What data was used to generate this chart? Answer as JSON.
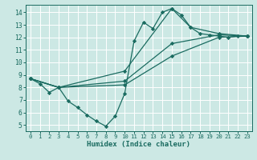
{
  "background_color": "#cce8e4",
  "grid_color": "#ffffff",
  "line_color": "#1a6b60",
  "marker_color": "#1a6b60",
  "xlabel": "Humidex (Indice chaleur)",
  "xlim": [
    -0.5,
    23.5
  ],
  "ylim": [
    4.5,
    14.6
  ],
  "xticks": [
    0,
    1,
    2,
    3,
    4,
    5,
    6,
    7,
    8,
    9,
    10,
    11,
    12,
    13,
    14,
    15,
    16,
    17,
    18,
    19,
    20,
    21,
    22,
    23
  ],
  "yticks": [
    5,
    6,
    7,
    8,
    9,
    10,
    11,
    12,
    13,
    14
  ],
  "lines": [
    {
      "x": [
        0,
        1,
        2,
        3,
        4,
        5,
        6,
        7,
        8,
        9,
        10,
        11,
        12,
        13,
        14,
        15,
        16,
        17,
        18,
        19,
        20,
        21,
        22,
        23
      ],
      "y": [
        8.7,
        8.3,
        7.6,
        8.0,
        6.9,
        6.4,
        5.8,
        5.3,
        4.9,
        5.7,
        7.5,
        11.7,
        13.2,
        12.7,
        14.0,
        14.3,
        13.8,
        12.8,
        12.3,
        12.2,
        12.1,
        12.0,
        12.1,
        12.1
      ]
    },
    {
      "x": [
        0,
        3,
        10,
        15,
        20,
        23
      ],
      "y": [
        8.7,
        8.0,
        8.2,
        10.5,
        12.0,
        12.1
      ]
    },
    {
      "x": [
        0,
        3,
        10,
        15,
        20,
        23
      ],
      "y": [
        8.7,
        8.0,
        8.5,
        11.5,
        12.2,
        12.1
      ]
    },
    {
      "x": [
        0,
        3,
        10,
        15,
        17,
        20,
        23
      ],
      "y": [
        8.7,
        8.0,
        9.3,
        14.3,
        12.8,
        12.3,
        12.1
      ]
    }
  ]
}
